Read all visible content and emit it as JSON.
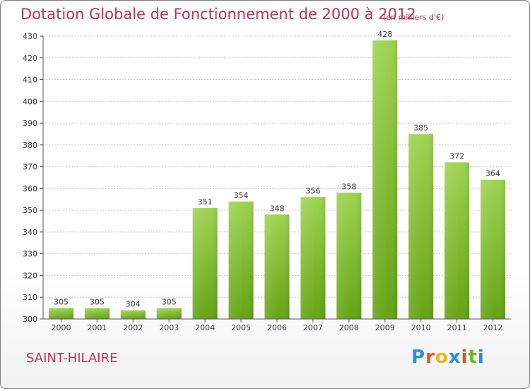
{
  "chart_data": {
    "type": "bar",
    "title": "Dotation Globale de Fonctionnement de 2000 à 2012",
    "unit_note": "(en milliers d'€)",
    "categories": [
      "2000",
      "2001",
      "2002",
      "2003",
      "2004",
      "2005",
      "2006",
      "2007",
      "2008",
      "2009",
      "2010",
      "2011",
      "2012"
    ],
    "values": [
      305,
      305,
      304,
      305,
      351,
      354,
      348,
      356,
      358,
      428,
      385,
      372,
      364
    ],
    "ylim": [
      300,
      430
    ],
    "yticks": [
      300,
      310,
      320,
      330,
      340,
      350,
      360,
      370,
      380,
      390,
      400,
      410,
      420,
      430
    ],
    "grid": true,
    "colors": {
      "bar_light": "#9fd352",
      "bar_dark": "#64a313",
      "grid": "#cccccc",
      "axis": "#555555"
    }
  },
  "footer": {
    "commune": "SAINT-HILAIRE",
    "logo_text": "Proxiti",
    "logo_colors": [
      "#2e8fd8",
      "#e8541a",
      "#f2b418",
      "#2e8fd8",
      "#e8541a",
      "#6fb22d",
      "#2e8fd8"
    ]
  },
  "colors": {
    "accent": "#c0325a"
  }
}
